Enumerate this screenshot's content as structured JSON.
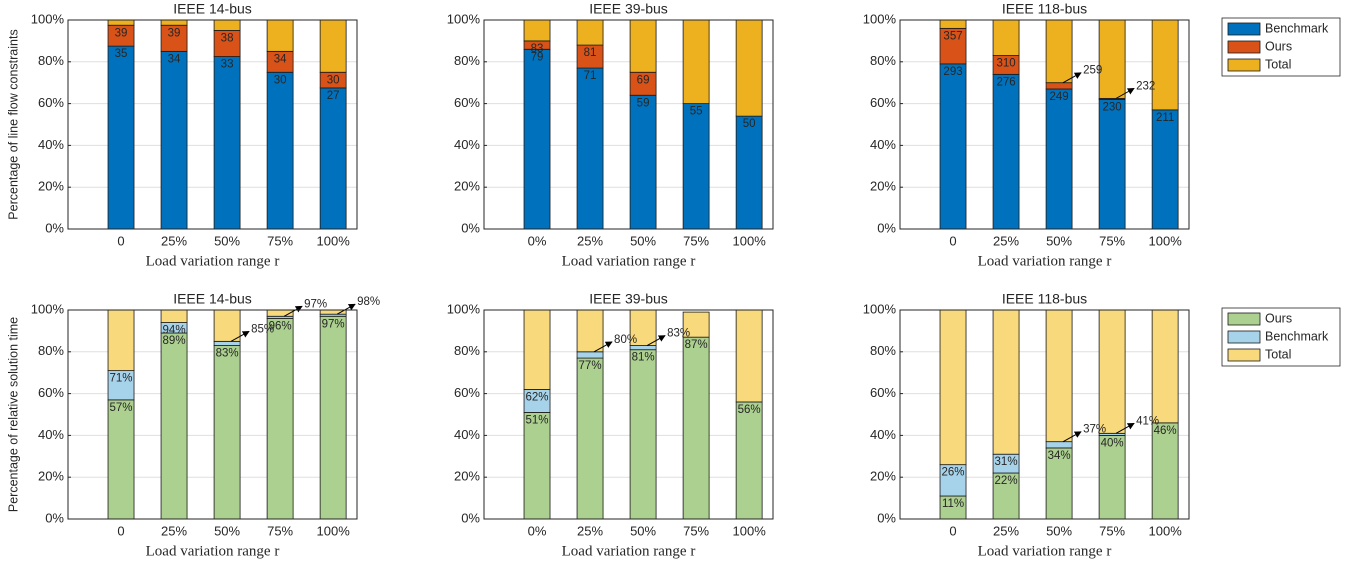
{
  "chart_data": [
    {
      "type": "bar",
      "stacked": true,
      "title": "IEEE 14-bus",
      "ylabel": "Percentage of line flow constraints",
      "xlabel": "Load variation range r",
      "categories": [
        "0",
        "25%",
        "50%",
        "75%",
        "100%"
      ],
      "series": [
        {
          "name": "Benchmark",
          "color": "#0072bd",
          "values": [
            87.5,
            85,
            82.5,
            75,
            67.5
          ],
          "labels": [
            "35",
            "34",
            "33",
            "30",
            "27"
          ]
        },
        {
          "name": "Ours",
          "color": "#d95319",
          "values": [
            10,
            12.5,
            12.5,
            10,
            7.5
          ],
          "labels": [
            "39",
            "39",
            "38",
            "34",
            "30"
          ]
        },
        {
          "name": "Total",
          "color": "#edb120",
          "values": [
            2.5,
            2.5,
            5,
            15,
            25
          ]
        }
      ],
      "ylim": [
        0,
        100
      ],
      "yticks": [
        {
          "value": 0,
          "label": "0%"
        },
        {
          "value": 20,
          "label": "20%"
        },
        {
          "value": 40,
          "label": "40%"
        },
        {
          "value": 60,
          "label": "60%"
        },
        {
          "value": 80,
          "label": "80%"
        },
        {
          "value": 100,
          "label": "100%"
        }
      ],
      "grid": true
    },
    {
      "type": "bar",
      "stacked": true,
      "title": "IEEE 39-bus",
      "xlabel": "Load variation range r",
      "categories": [
        "0%",
        "25%",
        "50%",
        "75%",
        "100%"
      ],
      "series": [
        {
          "name": "Benchmark",
          "color": "#0072bd",
          "values": [
            86,
            77,
            64,
            60,
            54
          ],
          "labels": [
            "79",
            "71",
            "59",
            "55",
            "50"
          ]
        },
        {
          "name": "Ours",
          "color": "#d95319",
          "values": [
            4,
            11,
            11,
            0,
            0
          ],
          "labels": [
            "83",
            "81",
            "69",
            null,
            null
          ]
        },
        {
          "name": "Total",
          "color": "#edb120",
          "values": [
            10,
            12,
            25,
            40,
            46
          ]
        }
      ],
      "ylim": [
        0,
        100
      ],
      "yticks": [
        {
          "value": 0,
          "label": "0%"
        },
        {
          "value": 20,
          "label": "20%"
        },
        {
          "value": 40,
          "label": "40%"
        },
        {
          "value": 60,
          "label": "60%"
        },
        {
          "value": 80,
          "label": "80%"
        },
        {
          "value": 100,
          "label": "100%"
        }
      ],
      "grid": true
    },
    {
      "type": "bar",
      "stacked": true,
      "title": "IEEE 118-bus",
      "xlabel": "Load variation range r",
      "legend": "outside",
      "categories": [
        "0",
        "25%",
        "50%",
        "75%",
        "100%"
      ],
      "series": [
        {
          "name": "Benchmark",
          "color": "#0072bd",
          "values": [
            79,
            74,
            67,
            62,
            57
          ],
          "labels": [
            "293",
            "276",
            "249",
            "230",
            "211"
          ]
        },
        {
          "name": "Ours",
          "color": "#d95319",
          "values": [
            17,
            9,
            3,
            0.5,
            0
          ],
          "labels": [
            "357",
            "310",
            "259",
            "232",
            null
          ]
        },
        {
          "name": "Total",
          "color": "#edb120",
          "values": [
            4,
            17,
            30,
            37.5,
            43
          ]
        }
      ],
      "ylim": [
        0,
        100
      ],
      "yticks": [
        {
          "value": 0,
          "label": "0%"
        },
        {
          "value": 20,
          "label": "20%"
        },
        {
          "value": 40,
          "label": "40%"
        },
        {
          "value": 60,
          "label": "60%"
        },
        {
          "value": 80,
          "label": "80%"
        },
        {
          "value": 100,
          "label": "100%"
        }
      ],
      "grid": true
    },
    {
      "type": "bar",
      "stacked": true,
      "title": "IEEE 14-bus",
      "ylabel": "Percentage of relative solution time",
      "xlabel": "Load variation range r",
      "categories": [
        "0",
        "25%",
        "50%",
        "75%",
        "100%"
      ],
      "series": [
        {
          "name": "Ours",
          "color": "#acd08f",
          "values": [
            57,
            89,
            83,
            96,
            97
          ],
          "labels": [
            "57%",
            "89%",
            "83%",
            "96%",
            "97%"
          ]
        },
        {
          "name": "Benchmark",
          "color": "#a6d3ea",
          "values": [
            14,
            5,
            2,
            1,
            1
          ],
          "labels": [
            "71%",
            "94%",
            "85%",
            "97%",
            "98%"
          ]
        },
        {
          "name": "Total",
          "color": "#f8d97c",
          "values": [
            29,
            6,
            15,
            3,
            2
          ]
        }
      ],
      "ylim": [
        0,
        100
      ],
      "yticks": [
        {
          "value": 0,
          "label": "0%"
        },
        {
          "value": 20,
          "label": "20%"
        },
        {
          "value": 40,
          "label": "40%"
        },
        {
          "value": 60,
          "label": "60%"
        },
        {
          "value": 80,
          "label": "80%"
        },
        {
          "value": 100,
          "label": "100%"
        }
      ],
      "grid": true
    },
    {
      "type": "bar",
      "stacked": true,
      "title": "IEEE 39-bus",
      "xlabel": "Load variation range r",
      "categories": [
        "0%",
        "25%",
        "50%",
        "75%",
        "100%"
      ],
      "series": [
        {
          "name": "Ours",
          "color": "#acd08f",
          "values": [
            51,
            77,
            81,
            87,
            56
          ],
          "labels": [
            "51%",
            "77%",
            "81%",
            "87%",
            "56%"
          ]
        },
        {
          "name": "Benchmark",
          "color": "#a6d3ea",
          "values": [
            11,
            3,
            2,
            0,
            0
          ],
          "labels": [
            "62%",
            "80%",
            "83%",
            null,
            null
          ]
        },
        {
          "name": "Total",
          "color": "#f8d97c",
          "values": [
            38,
            20,
            17,
            12,
            44
          ]
        }
      ],
      "ylim": [
        0,
        100
      ],
      "yticks": [
        {
          "value": 0,
          "label": "0%"
        },
        {
          "value": 20,
          "label": "20%"
        },
        {
          "value": 40,
          "label": "40%"
        },
        {
          "value": 60,
          "label": "60%"
        },
        {
          "value": 80,
          "label": "80%"
        },
        {
          "value": 100,
          "label": "100%"
        }
      ],
      "grid": true
    },
    {
      "type": "bar",
      "stacked": true,
      "title": "IEEE 118-bus",
      "xlabel": "Load variation range r",
      "legend": "outside",
      "categories": [
        "0",
        "25%",
        "50%",
        "75%",
        "100%"
      ],
      "series": [
        {
          "name": "Ours",
          "color": "#acd08f",
          "values": [
            11,
            22,
            34,
            40,
            46
          ],
          "labels": [
            "11%",
            "22%",
            "34%",
            "40%",
            "46%"
          ]
        },
        {
          "name": "Benchmark",
          "color": "#a6d3ea",
          "values": [
            15,
            9,
            3,
            1,
            0
          ],
          "labels": [
            "26%",
            "31%",
            "37%",
            "41%",
            null
          ]
        },
        {
          "name": "Total",
          "color": "#f8d97c",
          "values": [
            74,
            69,
            63,
            59,
            54
          ]
        }
      ],
      "ylim": [
        0,
        100
      ],
      "yticks": [
        {
          "value": 0,
          "label": "0%"
        },
        {
          "value": 20,
          "label": "20%"
        },
        {
          "value": 40,
          "label": "40%"
        },
        {
          "value": 60,
          "label": "60%"
        },
        {
          "value": 80,
          "label": "80%"
        },
        {
          "value": 100,
          "label": "100%"
        }
      ],
      "grid": true
    }
  ]
}
